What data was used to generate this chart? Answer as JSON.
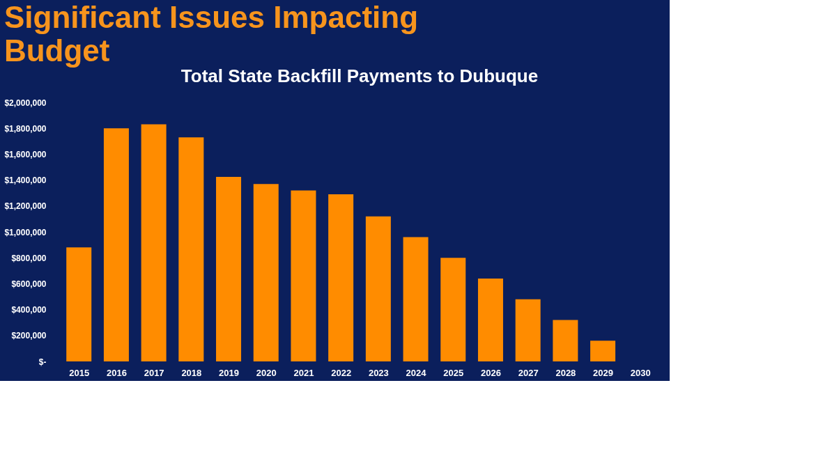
{
  "chart_data": {
    "type": "bar",
    "title": "Significant Issues Impacting Budget",
    "subtitle": "Total State Backfill Payments to Dubuque",
    "categories": [
      "2015",
      "2016",
      "2017",
      "2018",
      "2019",
      "2020",
      "2021",
      "2022",
      "2023",
      "2024",
      "2025",
      "2026",
      "2027",
      "2028",
      "2029",
      "2030"
    ],
    "values": [
      880000,
      1800000,
      1830000,
      1730000,
      1425000,
      1370000,
      1320000,
      1290000,
      1120000,
      960000,
      800000,
      640000,
      480000,
      320000,
      160000,
      0
    ],
    "color": "#ff8c00",
    "ylim": [
      0,
      2000000
    ],
    "yticks": [
      {
        "value": 0,
        "label": "$-"
      },
      {
        "value": 200000,
        "label": "$200,000"
      },
      {
        "value": 400000,
        "label": "$400,000"
      },
      {
        "value": 600000,
        "label": "$600,000"
      },
      {
        "value": 800000,
        "label": "$800,000"
      },
      {
        "value": 1000000,
        "label": "$1,000,000"
      },
      {
        "value": 1200000,
        "label": "$1,200,000"
      },
      {
        "value": 1400000,
        "label": "$1,400,000"
      },
      {
        "value": 1600000,
        "label": "$1,600,000"
      },
      {
        "value": 1800000,
        "label": "$1,800,000"
      },
      {
        "value": 2000000,
        "label": "$2,000,000"
      }
    ],
    "grid": false
  }
}
